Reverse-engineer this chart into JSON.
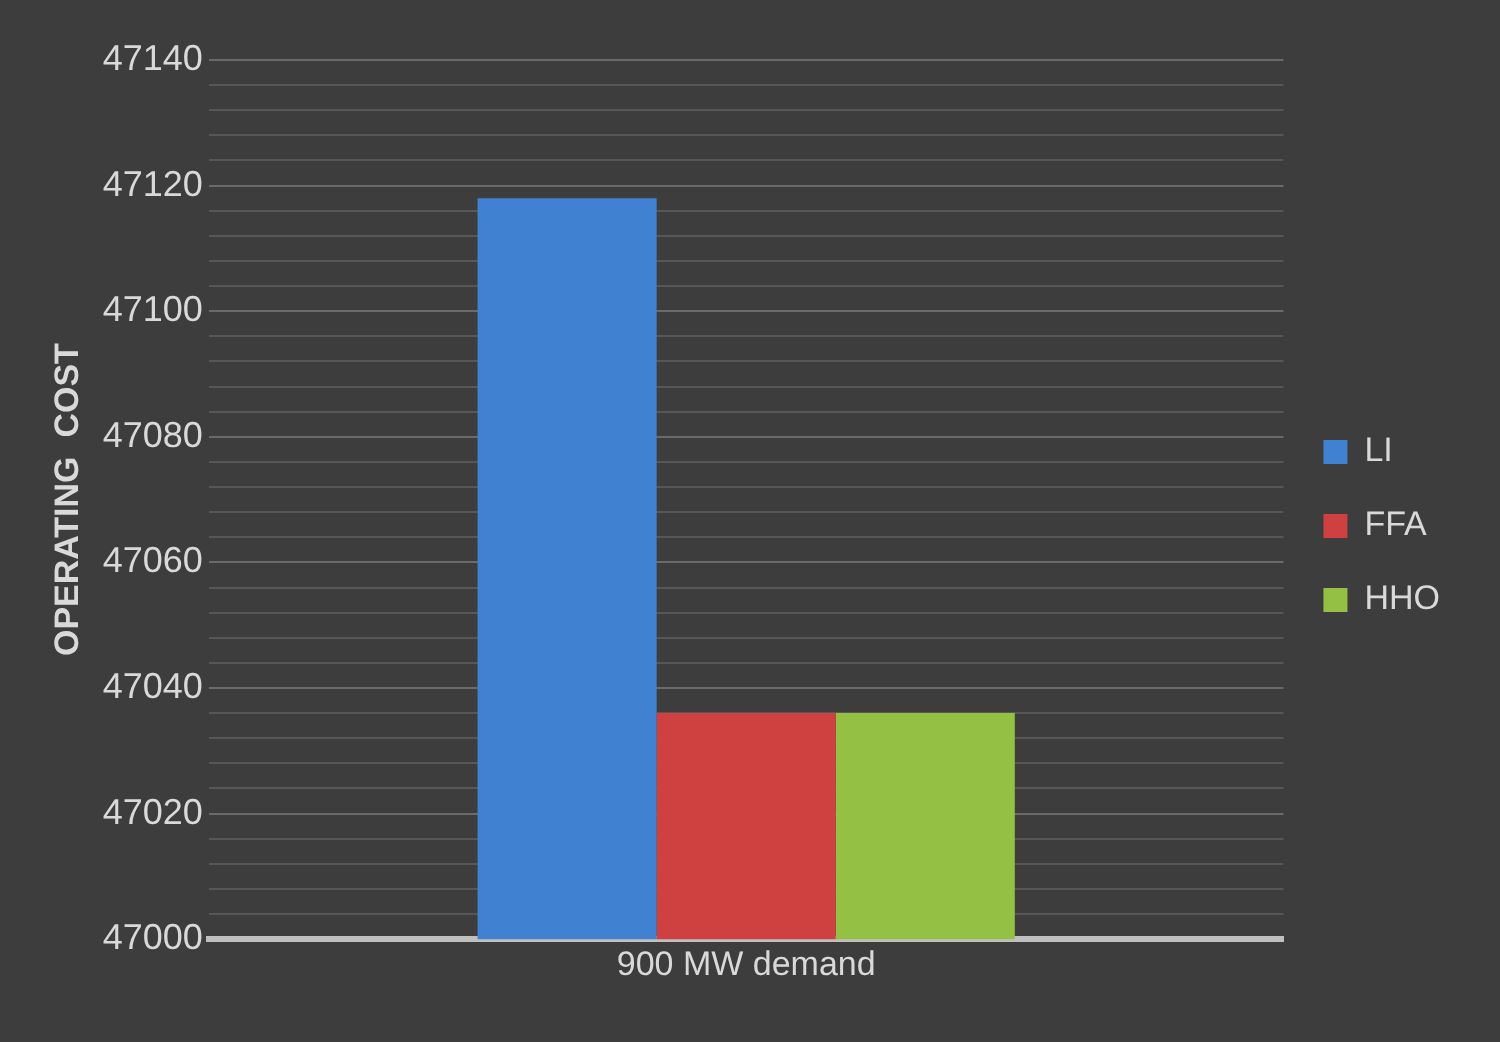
{
  "chart_data": {
    "type": "bar",
    "ylabel": "OPERATING  COST",
    "categories": [
      "900 MW demand"
    ],
    "series": [
      {
        "name": "LI",
        "color": "#4181d2",
        "values": [
          47118
        ]
      },
      {
        "name": "FFA",
        "color": "#cf4141",
        "values": [
          47036
        ]
      },
      {
        "name": "HHO",
        "color": "#94c043",
        "values": [
          47036
        ]
      }
    ],
    "ylim": [
      47000,
      47140
    ],
    "yticks": [
      47000,
      {
        "value": 47004,
        "label": null
      },
      {
        "value": 47008,
        "label": null
      },
      {
        "value": 47012,
        "label": null
      },
      {
        "value": 47016,
        "label": null
      },
      47020,
      {
        "value": 47024,
        "label": null
      },
      {
        "value": 47028,
        "label": null
      },
      {
        "value": 47032,
        "label": null
      },
      {
        "value": 47036,
        "label": null
      },
      47040,
      {
        "value": 47044,
        "label": null
      },
      {
        "value": 47048,
        "label": null
      },
      {
        "value": 47052,
        "label": null
      },
      {
        "value": 47056,
        "label": null
      },
      47060,
      {
        "value": 47064,
        "label": null
      },
      {
        "value": 47068,
        "label": null
      },
      {
        "value": 47072,
        "label": null
      },
      {
        "value": 47076,
        "label": null
      },
      47080,
      {
        "value": 47084,
        "label": null
      },
      {
        "value": 47088,
        "label": null
      },
      {
        "value": 47092,
        "label": null
      },
      {
        "value": 47096,
        "label": null
      },
      47100,
      {
        "value": 47104,
        "label": null
      },
      {
        "value": 47108,
        "label": null
      },
      {
        "value": 47112,
        "label": null
      },
      {
        "value": 47116,
        "label": null
      },
      47120,
      {
        "value": 47124,
        "label": null
      },
      {
        "value": 47128,
        "label": null
      },
      {
        "value": 47132,
        "label": null
      },
      {
        "value": 47136,
        "label": null
      },
      47140
    ],
    "grid": "y",
    "legend": "right"
  }
}
